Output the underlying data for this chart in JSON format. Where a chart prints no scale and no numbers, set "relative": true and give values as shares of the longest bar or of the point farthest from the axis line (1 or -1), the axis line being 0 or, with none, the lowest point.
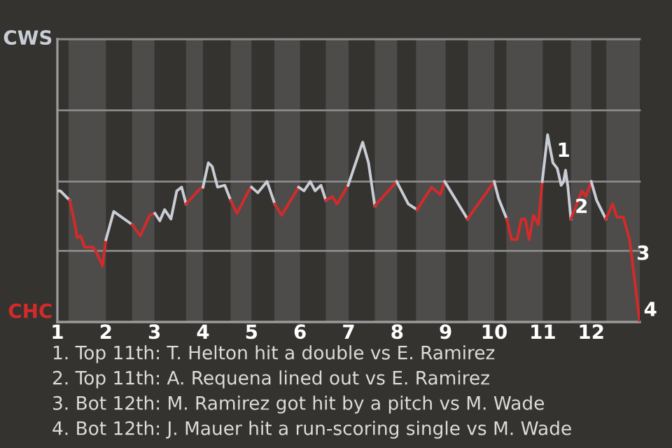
{
  "chart_data": {
    "type": "line",
    "relative": true,
    "xlim": [
      1,
      13
    ],
    "xticks": [
      1,
      2,
      3,
      4,
      5,
      6,
      7,
      8,
      9,
      10,
      11,
      12
    ],
    "line_style": "solid",
    "series": [
      {
        "name": "CWS",
        "color": "#c9ced6",
        "x": [
          1.0,
          1.06,
          1.25
        ],
        "values": [
          0.7,
          0.7,
          0.65
        ]
      },
      {
        "name": "CHC",
        "color": "#d42a2a",
        "x": [
          1.25,
          1.34,
          1.41,
          1.48,
          1.56,
          1.73,
          1.79,
          1.93,
          2.0
        ],
        "values": [
          0.65,
          0.55,
          0.45,
          0.46,
          0.4,
          0.4,
          0.38,
          0.3,
          0.44
        ]
      },
      {
        "color": "#c9ced6",
        "x": [
          2.0,
          2.16,
          2.54
        ],
        "values": [
          0.44,
          0.59,
          0.52
        ]
      },
      {
        "color": "#d42a2a",
        "x": [
          2.54,
          2.71,
          2.9,
          3.01
        ],
        "values": [
          0.52,
          0.46,
          0.57,
          0.58
        ]
      },
      {
        "color": "#c9ced6",
        "x": [
          3.01,
          3.11,
          3.21,
          3.34,
          3.46,
          3.56,
          3.65
        ],
        "values": [
          0.58,
          0.54,
          0.6,
          0.55,
          0.7,
          0.72,
          0.63
        ]
      },
      {
        "color": "#d42a2a",
        "x": [
          3.65,
          3.93,
          4.0
        ],
        "values": [
          0.63,
          0.71,
          0.72
        ]
      },
      {
        "color": "#c9ced6",
        "x": [
          4.0,
          4.11,
          4.19,
          4.3,
          4.45,
          4.57
        ],
        "values": [
          0.72,
          0.85,
          0.83,
          0.72,
          0.73,
          0.65
        ]
      },
      {
        "color": "#d42a2a",
        "x": [
          4.57,
          4.7,
          4.94,
          5.0
        ],
        "values": [
          0.65,
          0.58,
          0.7,
          0.72
        ]
      },
      {
        "color": "#c9ced6",
        "x": [
          5.0,
          5.13,
          5.32,
          5.48
        ],
        "values": [
          0.72,
          0.69,
          0.75,
          0.63
        ]
      },
      {
        "color": "#d42a2a",
        "x": [
          5.48,
          5.62,
          5.97
        ],
        "values": [
          0.63,
          0.57,
          0.72
        ]
      },
      {
        "color": "#c9ced6",
        "x": [
          5.97,
          6.08,
          6.21,
          6.31,
          6.43,
          6.53
        ],
        "values": [
          0.72,
          0.7,
          0.75,
          0.7,
          0.73,
          0.65
        ]
      },
      {
        "color": "#d42a2a",
        "x": [
          6.53,
          6.67,
          6.76,
          6.99
        ],
        "values": [
          0.65,
          0.67,
          0.63,
          0.73
        ]
      },
      {
        "color": "#c9ced6",
        "x": [
          6.99,
          7.29,
          7.41,
          7.54
        ],
        "values": [
          0.73,
          0.96,
          0.85,
          0.62
        ]
      },
      {
        "color": "#d42a2a",
        "x": [
          7.54,
          7.99
        ],
        "values": [
          0.62,
          0.75
        ]
      },
      {
        "color": "#c9ced6",
        "x": [
          7.99,
          8.23,
          8.41
        ],
        "values": [
          0.75,
          0.63,
          0.6
        ]
      },
      {
        "color": "#d42a2a",
        "x": [
          8.41,
          8.71,
          8.89,
          8.98
        ],
        "values": [
          0.6,
          0.72,
          0.68,
          0.75
        ]
      },
      {
        "color": "#c9ced6",
        "x": [
          8.98,
          9.45
        ],
        "values": [
          0.75,
          0.55
        ]
      },
      {
        "color": "#d42a2a",
        "x": [
          9.45,
          10.0
        ],
        "values": [
          0.55,
          0.75
        ]
      },
      {
        "color": "#c9ced6",
        "x": [
          10.0,
          10.09,
          10.26
        ],
        "values": [
          0.75,
          0.66,
          0.55
        ]
      },
      {
        "color": "#d42a2a",
        "x": [
          10.26,
          10.36,
          10.47,
          10.56,
          10.64,
          10.72,
          10.81,
          10.91,
          10.99
        ],
        "values": [
          0.55,
          0.44,
          0.44,
          0.55,
          0.55,
          0.44,
          0.57,
          0.52,
          0.75
        ]
      },
      {
        "color": "#c9ced6",
        "x": [
          10.99,
          11.1,
          11.15,
          11.21,
          11.3,
          11.38,
          11.43,
          11.47,
          11.52,
          11.58
        ],
        "values": [
          0.75,
          1,
          0.93,
          0.85,
          0.82,
          0.73,
          0.75,
          0.81,
          0.72,
          0.55
        ]
      },
      {
        "color": "#d42a2a",
        "x": [
          11.58,
          11.81,
          11.89,
          12.0
        ],
        "values": [
          0.55,
          0.7,
          0.67,
          0.75
        ]
      },
      {
        "color": "#c9ced6",
        "x": [
          12.0,
          12.11,
          12.3
        ],
        "values": [
          0.75,
          0.65,
          0.55
        ]
      },
      {
        "color": "#d42a2a",
        "x": [
          12.3,
          12.44,
          12.53,
          12.66,
          12.79,
          13.0
        ],
        "values": [
          0.55,
          0.63,
          0.56,
          0.56,
          0.44,
          0
        ]
      }
    ],
    "ref_lines": [
      {
        "axis": "y",
        "value": 0.38,
        "color": "#8a8a8a"
      },
      {
        "axis": "y",
        "value": 0.75,
        "color": "#8a8a8a"
      },
      {
        "axis": "y",
        "value": 1.13,
        "color": "#8a8a8a"
      },
      {
        "axis": "y",
        "value": 1.51,
        "color": "#8a8a8a"
      }
    ],
    "bands": [
      {
        "axis": "x",
        "from": 1.23,
        "to": 2.0,
        "color": "#4d4c4a"
      },
      {
        "axis": "x",
        "from": 2.54,
        "to": 3.0,
        "color": "#4d4c4a"
      },
      {
        "axis": "x",
        "from": 3.65,
        "to": 4.0,
        "color": "#4d4c4a"
      },
      {
        "axis": "x",
        "from": 4.57,
        "to": 5.0,
        "color": "#4d4c4a"
      },
      {
        "axis": "x",
        "from": 5.47,
        "to": 6.0,
        "color": "#4d4c4a"
      },
      {
        "axis": "x",
        "from": 6.53,
        "to": 7.0,
        "color": "#4d4c4a"
      },
      {
        "axis": "x",
        "from": 7.54,
        "to": 8.0,
        "color": "#4d4c4a"
      },
      {
        "axis": "x",
        "from": 8.39,
        "to": 9.0,
        "color": "#4d4c4a"
      },
      {
        "axis": "x",
        "from": 9.46,
        "to": 10.0,
        "color": "#4d4c4a"
      },
      {
        "axis": "x",
        "from": 10.25,
        "to": 11.0,
        "color": "#4d4c4a"
      },
      {
        "axis": "x",
        "from": 11.58,
        "to": 12.0,
        "color": "#4d4c4a"
      },
      {
        "axis": "x",
        "from": 12.31,
        "to": 13.0,
        "color": "#4d4c4a"
      }
    ],
    "annotations": [
      {
        "text": "1",
        "x": 11.21,
        "y": 0.85
      },
      {
        "text": "2",
        "x": 11.58,
        "y": 0.55
      },
      {
        "text": "3",
        "x": 12.85,
        "y": 0.3
      },
      {
        "text": "4",
        "x": 13,
        "y": 0
      },
      "1. Top 11th: T. Helton hit a double vs E. Ramirez",
      "2. Top 11th: A. Requena lined out vs E. Ramirez",
      "3. Bot 12th: M. Ramirez got hit by a pitch vs M. Wade",
      "4. Bot 12th: J. Mauer hit a run-scoring single vs M. Wade"
    ]
  }
}
